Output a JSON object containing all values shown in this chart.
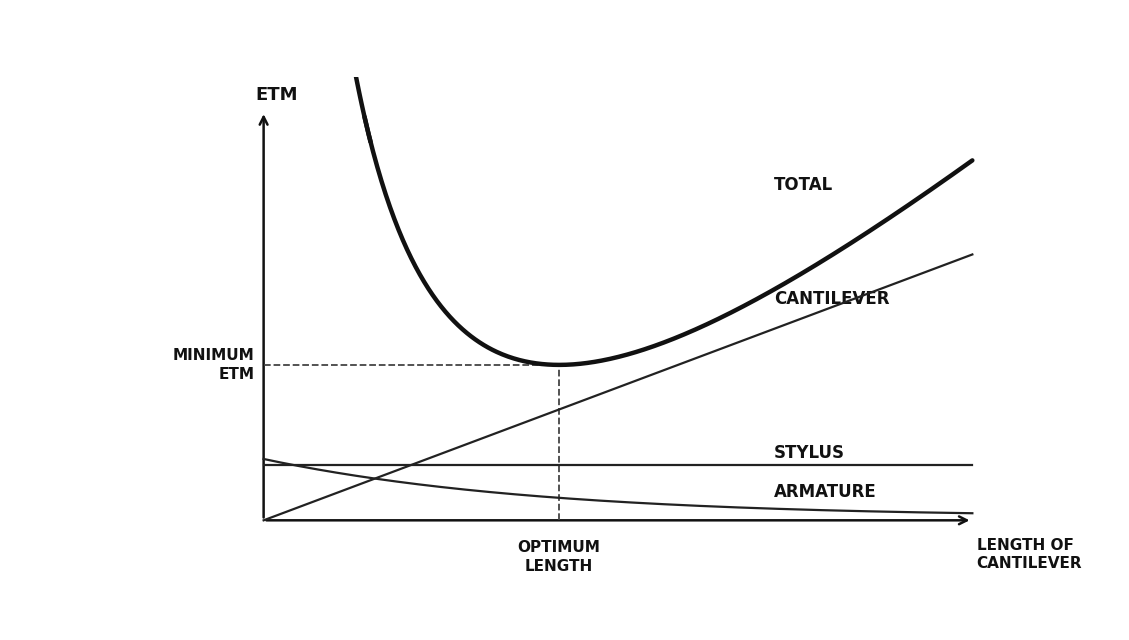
{
  "background_color": "#ffffff",
  "ylabel": "ETM",
  "xlabel": "LENGTH OF\nCANTILEVER",
  "label_total": "TOTAL",
  "label_cantilever": "CANTILEVER",
  "label_stylus": "STYLUS",
  "label_armature": "ARMATURE",
  "label_minimum_etm": "MINIMUM\nETM",
  "label_optimum_length": "OPTIMUM\nLENGTH",
  "line_color_total": "#111111",
  "line_color_thin": "#222222",
  "line_color_dashed": "#444444",
  "axis_color": "#111111",
  "text_color": "#111111",
  "font_size_labels": 12,
  "font_size_axis_label": 13,
  "font_size_small": 11,
  "lw_total": 3.2,
  "lw_thin": 1.6
}
